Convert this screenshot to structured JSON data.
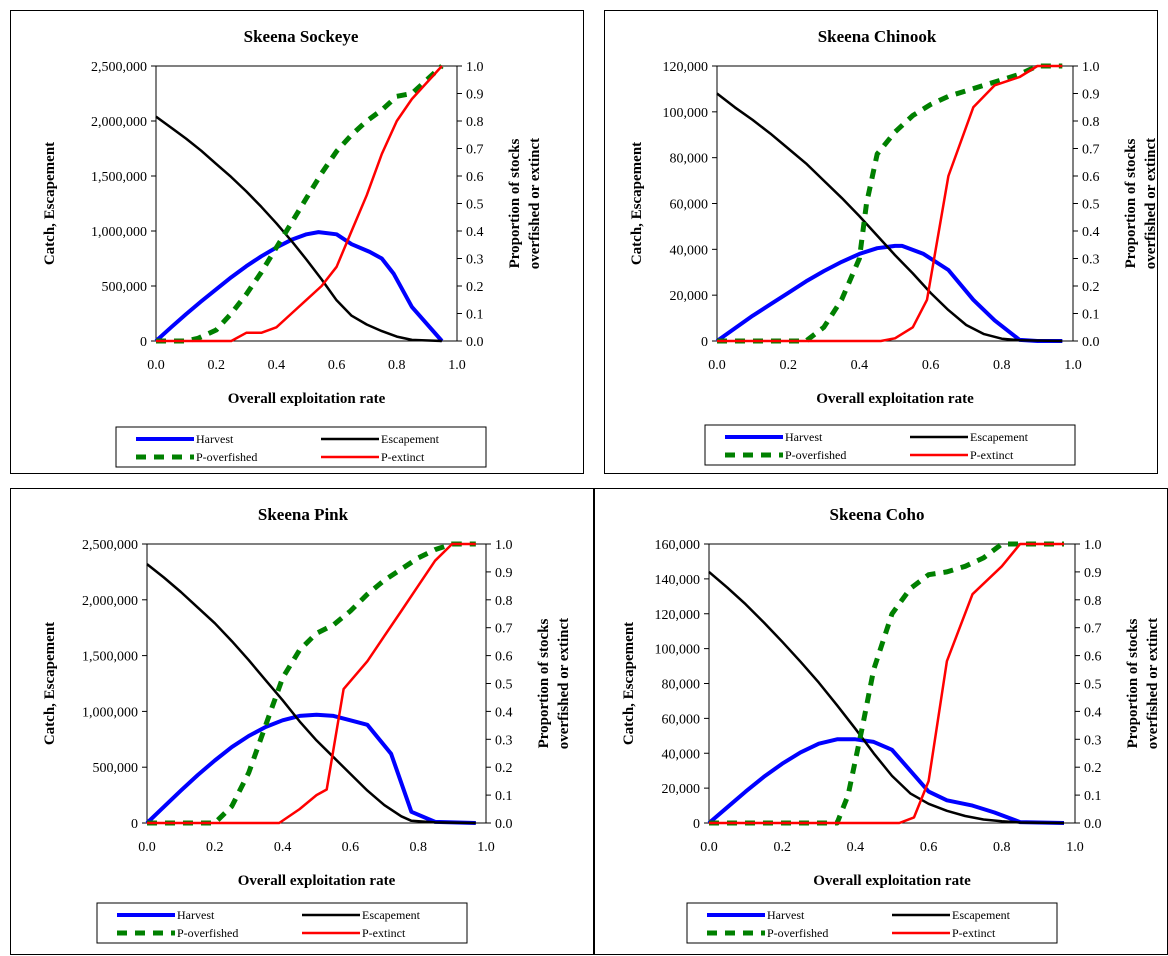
{
  "chart_data": [
    {
      "type": "line",
      "title": "Skeena Sockeye",
      "xlabel": "Overall exploitation rate",
      "ylabel": "Catch, Escapement",
      "y2label": [
        "Proportion of stocks",
        "overfished or extinct"
      ],
      "xlim": [
        0.0,
        1.0
      ],
      "ylim": [
        0,
        2500000
      ],
      "y2lim": [
        0.0,
        1.0
      ],
      "xticks": [
        "0.0",
        "0.2",
        "0.4",
        "0.6",
        "0.8",
        "1.0"
      ],
      "yticks": [
        "0",
        "500,000",
        "1,000,000",
        "1,500,000",
        "2,000,000",
        "2,500,000"
      ],
      "y2ticks": [
        "0.0",
        "0.1",
        "0.2",
        "0.3",
        "0.4",
        "0.5",
        "0.6",
        "0.7",
        "0.8",
        "0.9",
        "1.0"
      ],
      "legend": [
        "Harvest",
        "Escapement",
        "P-overfished",
        "P-extinct"
      ],
      "series": [
        {
          "name": "Harvest",
          "axis": "left",
          "color": "#0000ff",
          "x": [
            0.0,
            0.05,
            0.1,
            0.15,
            0.2,
            0.25,
            0.3,
            0.35,
            0.4,
            0.45,
            0.5,
            0.54,
            0.6,
            0.65,
            0.71,
            0.75,
            0.79,
            0.85,
            0.95
          ],
          "y": [
            0,
            125000,
            245000,
            360000,
            470000,
            580000,
            680000,
            770000,
            850000,
            920000,
            970000,
            990000,
            970000,
            880000,
            810000,
            750000,
            610000,
            310000,
            0
          ]
        },
        {
          "name": "Escapement",
          "axis": "left",
          "color": "#000000",
          "x": [
            0.0,
            0.05,
            0.1,
            0.15,
            0.2,
            0.25,
            0.3,
            0.35,
            0.4,
            0.45,
            0.5,
            0.55,
            0.6,
            0.65,
            0.7,
            0.75,
            0.8,
            0.85,
            0.95
          ],
          "y": [
            2040000,
            1940000,
            1840000,
            1730000,
            1610000,
            1490000,
            1360000,
            1220000,
            1070000,
            910000,
            740000,
            560000,
            370000,
            230000,
            150000,
            90000,
            40000,
            10000,
            0
          ]
        },
        {
          "name": "P-overfished",
          "axis": "right",
          "color": "#008000",
          "dash": true,
          "x": [
            0.0,
            0.1,
            0.14,
            0.2,
            0.25,
            0.3,
            0.35,
            0.4,
            0.45,
            0.5,
            0.55,
            0.6,
            0.65,
            0.7,
            0.75,
            0.8,
            0.85,
            0.95
          ],
          "y": [
            0.0,
            0.0,
            0.01,
            0.04,
            0.1,
            0.17,
            0.25,
            0.34,
            0.43,
            0.52,
            0.61,
            0.69,
            0.75,
            0.8,
            0.84,
            0.89,
            0.9,
            1.0
          ]
        },
        {
          "name": "P-extinct",
          "axis": "right",
          "color": "#ff0000",
          "x": [
            0.0,
            0.25,
            0.3,
            0.35,
            0.4,
            0.45,
            0.5,
            0.55,
            0.6,
            0.65,
            0.7,
            0.75,
            0.8,
            0.85,
            0.95
          ],
          "y": [
            0.0,
            0.0,
            0.03,
            0.03,
            0.05,
            0.1,
            0.15,
            0.2,
            0.27,
            0.4,
            0.53,
            0.68,
            0.8,
            0.88,
            1.0
          ]
        }
      ]
    },
    {
      "type": "line",
      "title": "Skeena Chinook",
      "xlabel": "Overall exploitation rate",
      "ylabel": "Catch, Escapement",
      "y2label": [
        "Proportion of stocks",
        "overfished or extinct"
      ],
      "xlim": [
        0.0,
        1.0
      ],
      "ylim": [
        0,
        120000
      ],
      "y2lim": [
        0.0,
        1.0
      ],
      "xticks": [
        "0.0",
        "0.2",
        "0.4",
        "0.6",
        "0.8",
        "1.0"
      ],
      "yticks": [
        "0",
        "20,000",
        "40,000",
        "60,000",
        "80,000",
        "100,000",
        "120,000"
      ],
      "y2ticks": [
        "0.0",
        "0.1",
        "0.2",
        "0.3",
        "0.4",
        "0.5",
        "0.6",
        "0.7",
        "0.8",
        "0.9",
        "1.0"
      ],
      "legend": [
        "Harvest",
        "Escapement",
        "P-overfished",
        "P-extinct"
      ],
      "series": [
        {
          "name": "Harvest",
          "axis": "left",
          "color": "#0000ff",
          "x": [
            0.0,
            0.05,
            0.1,
            0.15,
            0.2,
            0.25,
            0.3,
            0.35,
            0.4,
            0.45,
            0.5,
            0.52,
            0.58,
            0.65,
            0.72,
            0.78,
            0.85,
            0.9,
            0.97
          ],
          "y": [
            0,
            5500,
            11000,
            16000,
            21000,
            26000,
            30500,
            34500,
            38000,
            40500,
            41500,
            41500,
            38000,
            31000,
            18000,
            9000,
            500,
            0,
            0
          ]
        },
        {
          "name": "Escapement",
          "axis": "left",
          "color": "#000000",
          "x": [
            0.0,
            0.05,
            0.1,
            0.15,
            0.2,
            0.25,
            0.3,
            0.35,
            0.4,
            0.45,
            0.5,
            0.55,
            0.6,
            0.65,
            0.7,
            0.75,
            0.8,
            0.85,
            0.97
          ],
          "y": [
            108000,
            102000,
            96500,
            90500,
            84000,
            77500,
            70000,
            62500,
            54500,
            46000,
            37500,
            29500,
            21000,
            13500,
            7000,
            3000,
            1000,
            300,
            0
          ]
        },
        {
          "name": "P-overfished",
          "axis": "right",
          "color": "#008000",
          "dash": true,
          "x": [
            0.0,
            0.25,
            0.3,
            0.35,
            0.4,
            0.42,
            0.45,
            0.5,
            0.55,
            0.6,
            0.65,
            0.7,
            0.75,
            0.8,
            0.85,
            0.9,
            0.97
          ],
          "y": [
            0.0,
            0.0,
            0.05,
            0.15,
            0.3,
            0.5,
            0.68,
            0.76,
            0.82,
            0.86,
            0.89,
            0.91,
            0.93,
            0.95,
            0.97,
            1.0,
            1.0
          ]
        },
        {
          "name": "P-extinct",
          "axis": "right",
          "color": "#ff0000",
          "x": [
            0.0,
            0.46,
            0.5,
            0.55,
            0.59,
            0.65,
            0.72,
            0.78,
            0.85,
            0.9,
            0.97
          ],
          "y": [
            0.0,
            0.0,
            0.01,
            0.05,
            0.15,
            0.6,
            0.85,
            0.93,
            0.96,
            1.0,
            1.0
          ]
        }
      ]
    },
    {
      "type": "line",
      "title": "Skeena Pink",
      "xlabel": "Overall exploitation rate",
      "ylabel": "Catch, Escapement",
      "y2label": [
        "Proportion of stocks",
        "overfished or extinct"
      ],
      "xlim": [
        0.0,
        1.0
      ],
      "ylim": [
        0,
        2500000
      ],
      "y2lim": [
        0.0,
        1.0
      ],
      "xticks": [
        "0.0",
        "0.2",
        "0.4",
        "0.6",
        "0.8",
        "1.0"
      ],
      "yticks": [
        "0",
        "500,000",
        "1,000,000",
        "1,500,000",
        "2,000,000",
        "2,500,000"
      ],
      "y2ticks": [
        "0.0",
        "0.1",
        "0.2",
        "0.3",
        "0.4",
        "0.5",
        "0.6",
        "0.7",
        "0.8",
        "0.9",
        "1.0"
      ],
      "legend": [
        "Harvest",
        "Escapement",
        "P-overfished",
        "P-extinct"
      ],
      "series": [
        {
          "name": "Harvest",
          "axis": "left",
          "color": "#0000ff",
          "x": [
            0.0,
            0.05,
            0.1,
            0.15,
            0.2,
            0.25,
            0.3,
            0.35,
            0.4,
            0.45,
            0.5,
            0.55,
            0.6,
            0.65,
            0.72,
            0.78,
            0.85,
            0.97
          ],
          "y": [
            0,
            145000,
            290000,
            430000,
            560000,
            680000,
            780000,
            860000,
            920000,
            960000,
            970000,
            960000,
            920000,
            880000,
            620000,
            100000,
            10000,
            0
          ]
        },
        {
          "name": "Escapement",
          "axis": "left",
          "color": "#000000",
          "x": [
            0.0,
            0.05,
            0.1,
            0.15,
            0.2,
            0.25,
            0.3,
            0.35,
            0.4,
            0.45,
            0.5,
            0.55,
            0.6,
            0.65,
            0.7,
            0.75,
            0.78,
            0.85,
            0.97
          ],
          "y": [
            2320000,
            2200000,
            2070000,
            1930000,
            1790000,
            1630000,
            1460000,
            1280000,
            1100000,
            910000,
            740000,
            590000,
            440000,
            290000,
            160000,
            60000,
            20000,
            5000,
            0
          ]
        },
        {
          "name": "P-overfished",
          "axis": "right",
          "color": "#008000",
          "dash": true,
          "x": [
            0.0,
            0.2,
            0.25,
            0.3,
            0.35,
            0.4,
            0.45,
            0.5,
            0.55,
            0.6,
            0.65,
            0.7,
            0.75,
            0.8,
            0.85,
            0.9,
            0.97
          ],
          "y": [
            0.0,
            0.0,
            0.06,
            0.18,
            0.35,
            0.52,
            0.62,
            0.68,
            0.71,
            0.76,
            0.82,
            0.87,
            0.91,
            0.95,
            0.98,
            1.0,
            1.0
          ]
        },
        {
          "name": "P-extinct",
          "axis": "right",
          "color": "#ff0000",
          "x": [
            0.0,
            0.39,
            0.45,
            0.5,
            0.53,
            0.58,
            0.65,
            0.7,
            0.75,
            0.8,
            0.85,
            0.9,
            0.97
          ],
          "y": [
            0.0,
            0.0,
            0.05,
            0.1,
            0.12,
            0.48,
            0.58,
            0.67,
            0.76,
            0.85,
            0.94,
            1.0,
            1.0
          ]
        }
      ]
    },
    {
      "type": "line",
      "title": "Skeena Coho",
      "xlabel": "Overall exploitation rate",
      "ylabel": "Catch, Escapement",
      "y2label": [
        "Proportion of stocks",
        "overfished or extinct"
      ],
      "xlim": [
        0.0,
        1.0
      ],
      "ylim": [
        0,
        160000
      ],
      "y2lim": [
        0.0,
        1.0
      ],
      "xticks": [
        "0.0",
        "0.2",
        "0.4",
        "0.6",
        "0.8",
        "1.0"
      ],
      "yticks": [
        "0",
        "20,000",
        "40,000",
        "60,000",
        "80,000",
        "100,000",
        "120,000",
        "140,000",
        "160,000"
      ],
      "y2ticks": [
        "0.0",
        "0.1",
        "0.2",
        "0.3",
        "0.4",
        "0.5",
        "0.6",
        "0.7",
        "0.8",
        "0.9",
        "1.0"
      ],
      "legend": [
        "Harvest",
        "Escapement",
        "P-overfished",
        "P-extinct"
      ],
      "series": [
        {
          "name": "Harvest",
          "axis": "left",
          "color": "#0000ff",
          "x": [
            0.0,
            0.05,
            0.1,
            0.15,
            0.2,
            0.25,
            0.3,
            0.35,
            0.4,
            0.45,
            0.5,
            0.55,
            0.6,
            0.65,
            0.72,
            0.78,
            0.85,
            0.97
          ],
          "y": [
            0,
            9000,
            18000,
            26500,
            34000,
            40500,
            45500,
            48000,
            48000,
            46500,
            42000,
            30000,
            18000,
            13000,
            10000,
            6000,
            500,
            0
          ]
        },
        {
          "name": "Escapement",
          "axis": "left",
          "color": "#000000",
          "x": [
            0.0,
            0.05,
            0.1,
            0.15,
            0.2,
            0.25,
            0.3,
            0.35,
            0.4,
            0.45,
            0.5,
            0.55,
            0.6,
            0.65,
            0.7,
            0.75,
            0.8,
            0.85,
            0.97
          ],
          "y": [
            144000,
            135000,
            125500,
            115000,
            104000,
            92500,
            80500,
            67500,
            54000,
            40000,
            27000,
            17000,
            11000,
            7000,
            4000,
            2000,
            1000,
            300,
            0
          ]
        },
        {
          "name": "P-overfished",
          "axis": "right",
          "color": "#008000",
          "dash": true,
          "x": [
            0.0,
            0.35,
            0.38,
            0.42,
            0.45,
            0.5,
            0.55,
            0.6,
            0.65,
            0.7,
            0.75,
            0.8,
            0.85,
            0.97
          ],
          "y": [
            0.0,
            0.0,
            0.1,
            0.35,
            0.55,
            0.75,
            0.84,
            0.89,
            0.9,
            0.92,
            0.95,
            1.0,
            1.0,
            1.0
          ]
        },
        {
          "name": "P-extinct",
          "axis": "right",
          "color": "#ff0000",
          "x": [
            0.0,
            0.52,
            0.56,
            0.6,
            0.65,
            0.72,
            0.8,
            0.85,
            0.97
          ],
          "y": [
            0.0,
            0.0,
            0.02,
            0.15,
            0.58,
            0.82,
            0.92,
            1.0,
            1.0
          ]
        }
      ]
    }
  ]
}
